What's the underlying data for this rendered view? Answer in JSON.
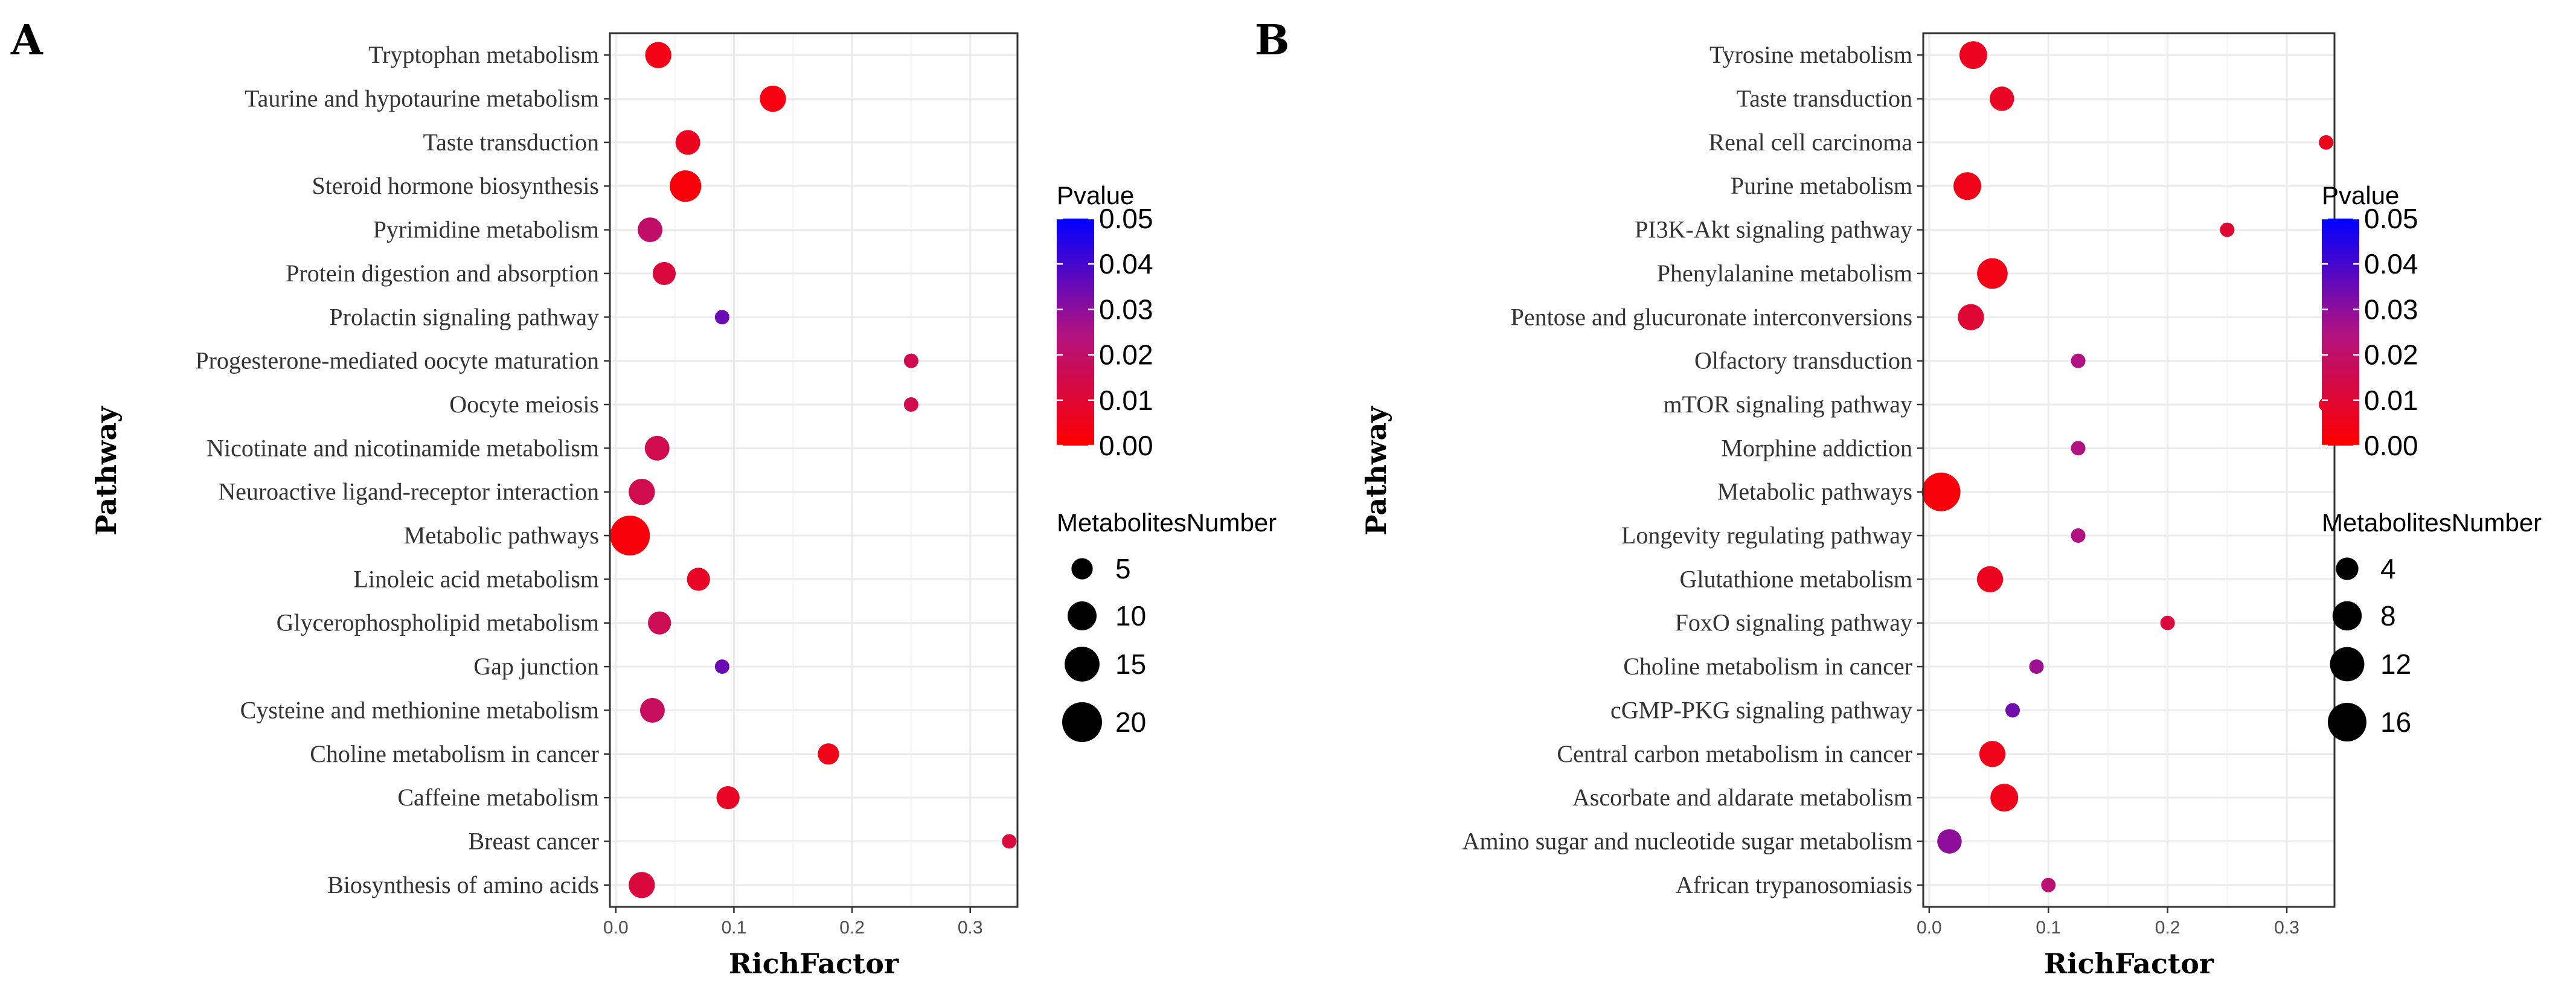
{
  "colors": {
    "low": "#FF0000",
    "high": "#0000FF"
  },
  "chart_data": [
    {
      "type": "scatter",
      "panel": "A",
      "xlabel": "RichFactor",
      "ylabel": "Pathway",
      "xlim": [
        -0.005,
        0.34
      ],
      "xticks": [
        0,
        0.1,
        0.2,
        0.3
      ],
      "xtick_labels": [
        "0.0",
        "0.1",
        "0.2",
        "0.3"
      ],
      "color_legend": {
        "title": "Pvalue",
        "range": [
          0,
          0.05
        ],
        "ticks": [
          0.05,
          0.04,
          0.03,
          0.02,
          0.01,
          0.0
        ],
        "tick_labels": [
          "0.05",
          "0.04",
          "0.03",
          "0.02",
          "0.01",
          "0.00"
        ]
      },
      "size_legend": {
        "title": "MetabolitesNumber",
        "values": [
          5,
          10,
          15,
          20
        ],
        "labels": [
          "5",
          "10",
          "15",
          "20"
        ]
      },
      "points": [
        {
          "pathway": "Tryptophan metabolism",
          "rich_factor": 0.036,
          "pvalue": 0.004,
          "count": 8
        },
        {
          "pathway": "Taurine and hypotaurine metabolism",
          "rich_factor": 0.133,
          "pvalue": 0.003,
          "count": 8
        },
        {
          "pathway": "Taste transduction",
          "rich_factor": 0.061,
          "pvalue": 0.006,
          "count": 7
        },
        {
          "pathway": "Steroid hormone biosynthesis",
          "rich_factor": 0.059,
          "pvalue": 0.002,
          "count": 12
        },
        {
          "pathway": "Pyrimidine metabolism",
          "rich_factor": 0.029,
          "pvalue": 0.02,
          "count": 7
        },
        {
          "pathway": "Protein digestion and absorption",
          "rich_factor": 0.041,
          "pvalue": 0.012,
          "count": 6
        },
        {
          "pathway": "Prolactin signaling pathway",
          "rich_factor": 0.09,
          "pvalue": 0.035,
          "count": 2
        },
        {
          "pathway": "Progesterone-mediated oocyte maturation",
          "rich_factor": 0.25,
          "pvalue": 0.015,
          "count": 2
        },
        {
          "pathway": "Oocyte meiosis",
          "rich_factor": 0.25,
          "pvalue": 0.015,
          "count": 2
        },
        {
          "pathway": "Nicotinate and nicotinamide metabolism",
          "rich_factor": 0.035,
          "pvalue": 0.015,
          "count": 7
        },
        {
          "pathway": "Neuroactive ligand-receptor interaction",
          "rich_factor": 0.022,
          "pvalue": 0.015,
          "count": 8
        },
        {
          "pathway": "Metabolic pathways",
          "rich_factor": 0.012,
          "pvalue": 0.002,
          "count": 20
        },
        {
          "pathway": "Linoleic acid metabolism",
          "rich_factor": 0.07,
          "pvalue": 0.007,
          "count": 6
        },
        {
          "pathway": "Glycerophospholipid metabolism",
          "rich_factor": 0.037,
          "pvalue": 0.016,
          "count": 6
        },
        {
          "pathway": "Gap junction",
          "rich_factor": 0.09,
          "pvalue": 0.035,
          "count": 2
        },
        {
          "pathway": "Cysteine and methionine metabolism",
          "rich_factor": 0.031,
          "pvalue": 0.018,
          "count": 7
        },
        {
          "pathway": "Choline metabolism in cancer",
          "rich_factor": 0.18,
          "pvalue": 0.005,
          "count": 5
        },
        {
          "pathway": "Caffeine metabolism",
          "rich_factor": 0.095,
          "pvalue": 0.007,
          "count": 6
        },
        {
          "pathway": "Breast cancer",
          "rich_factor": 0.333,
          "pvalue": 0.012,
          "count": 2
        },
        {
          "pathway": "Biosynthesis of amino acids",
          "rich_factor": 0.022,
          "pvalue": 0.012,
          "count": 8
        }
      ]
    },
    {
      "type": "scatter",
      "panel": "B",
      "xlabel": "RichFactor",
      "ylabel": "Pathway",
      "xlim": [
        -0.005,
        0.34
      ],
      "xticks": [
        0,
        0.1,
        0.2,
        0.3
      ],
      "xtick_labels": [
        "0.0",
        "0.1",
        "0.2",
        "0.3"
      ],
      "color_legend": {
        "title": "Pvalue",
        "range": [
          0,
          0.05
        ],
        "ticks": [
          0.05,
          0.04,
          0.03,
          0.02,
          0.01,
          0.0
        ],
        "tick_labels": [
          "0.05",
          "0.04",
          "0.03",
          "0.02",
          "0.01",
          "0.00"
        ]
      },
      "size_legend": {
        "title": "MetabolitesNumber",
        "values": [
          4,
          8,
          12,
          16
        ],
        "labels": [
          "4",
          "8",
          "12",
          "16"
        ]
      },
      "points": [
        {
          "pathway": "Tyrosine metabolism",
          "rich_factor": 0.037,
          "pvalue": 0.006,
          "count": 7
        },
        {
          "pathway": "Taste transduction",
          "rich_factor": 0.061,
          "pvalue": 0.007,
          "count": 5
        },
        {
          "pathway": "Renal cell carcinoma",
          "rich_factor": 0.333,
          "pvalue": 0.006,
          "count": 1
        },
        {
          "pathway": "Purine metabolism",
          "rich_factor": 0.032,
          "pvalue": 0.005,
          "count": 7
        },
        {
          "pathway": "PI3K-Akt signaling pathway",
          "rich_factor": 0.25,
          "pvalue": 0.01,
          "count": 1
        },
        {
          "pathway": "Phenylalanine metabolism",
          "rich_factor": 0.053,
          "pvalue": 0.004,
          "count": 9
        },
        {
          "pathway": "Pentose and glucuronate interconversions",
          "rich_factor": 0.035,
          "pvalue": 0.01,
          "count": 6
        },
        {
          "pathway": "Olfactory transduction",
          "rich_factor": 0.125,
          "pvalue": 0.025,
          "count": 1
        },
        {
          "pathway": "mTOR signaling pathway",
          "rich_factor": 0.333,
          "pvalue": 0.006,
          "count": 1
        },
        {
          "pathway": "Morphine addiction",
          "rich_factor": 0.125,
          "pvalue": 0.025,
          "count": 1
        },
        {
          "pathway": "Metabolic pathways",
          "rich_factor": 0.01,
          "pvalue": 0.002,
          "count": 16
        },
        {
          "pathway": "Longevity regulating pathway",
          "rich_factor": 0.125,
          "pvalue": 0.025,
          "count": 1
        },
        {
          "pathway": "Glutathione metabolism",
          "rich_factor": 0.051,
          "pvalue": 0.006,
          "count": 6
        },
        {
          "pathway": "FoxO signaling pathway",
          "rich_factor": 0.2,
          "pvalue": 0.012,
          "count": 1
        },
        {
          "pathway": "Choline metabolism in cancer",
          "rich_factor": 0.09,
          "pvalue": 0.028,
          "count": 1
        },
        {
          "pathway": "cGMP-PKG signaling pathway",
          "rich_factor": 0.07,
          "pvalue": 0.034,
          "count": 1
        },
        {
          "pathway": "Central carbon metabolism in cancer",
          "rich_factor": 0.053,
          "pvalue": 0.005,
          "count": 6
        },
        {
          "pathway": "Ascorbate and aldarate metabolism",
          "rich_factor": 0.063,
          "pvalue": 0.005,
          "count": 7
        },
        {
          "pathway": "Amino sugar and nucleotide sugar metabolism",
          "rich_factor": 0.017,
          "pvalue": 0.03,
          "count": 5
        },
        {
          "pathway": "African trypanosomiasis",
          "rich_factor": 0.1,
          "pvalue": 0.022,
          "count": 1
        }
      ]
    }
  ]
}
